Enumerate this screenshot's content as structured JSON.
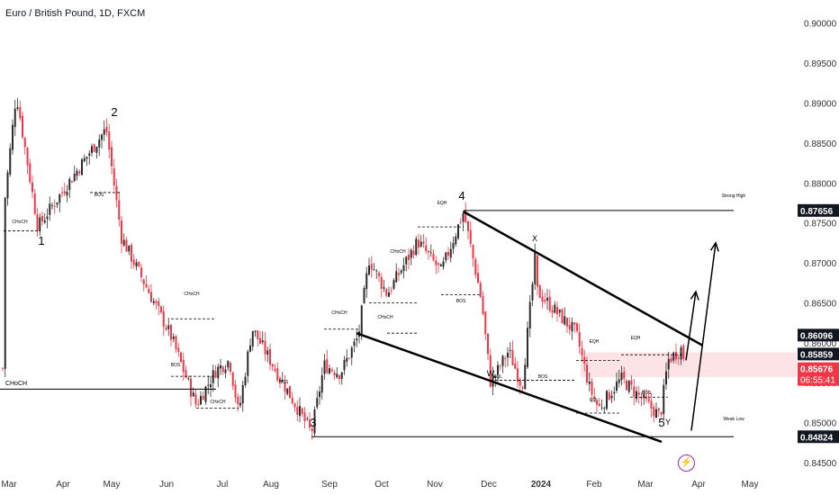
{
  "header": {
    "title": "Euro / British Pound, 1D, FXCM"
  },
  "colors": {
    "up": "#2b2b2b",
    "down": "#f23645",
    "accent": "#000000",
    "zone": "#fde3e6",
    "price_label": "#f23645"
  },
  "icons": {
    "alert": "lightning-bolt-icon"
  },
  "chart_data": {
    "type": "candlestick",
    "x_axis_labels": [
      "Mar",
      "Apr",
      "May",
      "Jun",
      "Jul",
      "Aug",
      "Sep",
      "Oct",
      "Nov",
      "Dec",
      "2024",
      "Feb",
      "Mar",
      "Apr",
      "May"
    ],
    "y_ticks": [
      "0.90000",
      "0.89500",
      "0.89000",
      "0.88500",
      "0.88000",
      "0.87500",
      "0.87000",
      "0.86500",
      "0.86000",
      "0.85500",
      "0.85000",
      "0.84500"
    ],
    "ylim": [
      0.8432,
      0.9029
    ],
    "price_labels": [
      {
        "value": "0.87656",
        "style": "dark"
      },
      {
        "value": "0.86096",
        "style": "dark"
      },
      {
        "value": "0.85859",
        "style": "dark"
      },
      {
        "value": "0.85676",
        "style": "red",
        "sub": "06:55:41"
      },
      {
        "value": "0.84824",
        "style": "dark"
      }
    ],
    "wave_labels": [
      "1",
      "2",
      "3",
      "4",
      "5",
      "X",
      "Y",
      "W"
    ],
    "structure_labels": [
      "CHoCH",
      "BOS",
      "EQH",
      "EQL",
      "Strong High",
      "Weak Low"
    ],
    "levels": {
      "strong_high": 0.87656,
      "weak_low": 0.84824,
      "choch_left": 0.8542
    },
    "swings": [
      0.8764,
      0.8912,
      0.8745,
      0.8868,
      0.8732,
      0.8608,
      0.8522,
      0.8566,
      0.8578,
      0.8511,
      0.8618,
      0.8487,
      0.8572,
      0.8608,
      0.8562,
      0.8704,
      0.8661,
      0.8727,
      0.8689,
      0.8764,
      0.8652,
      0.8549,
      0.859,
      0.8545,
      0.8664,
      0.8712,
      0.8612,
      0.8543,
      0.8518,
      0.8555,
      0.852,
      0.8578,
      0.8508,
      0.8594
    ],
    "current_price": 0.85676
  }
}
